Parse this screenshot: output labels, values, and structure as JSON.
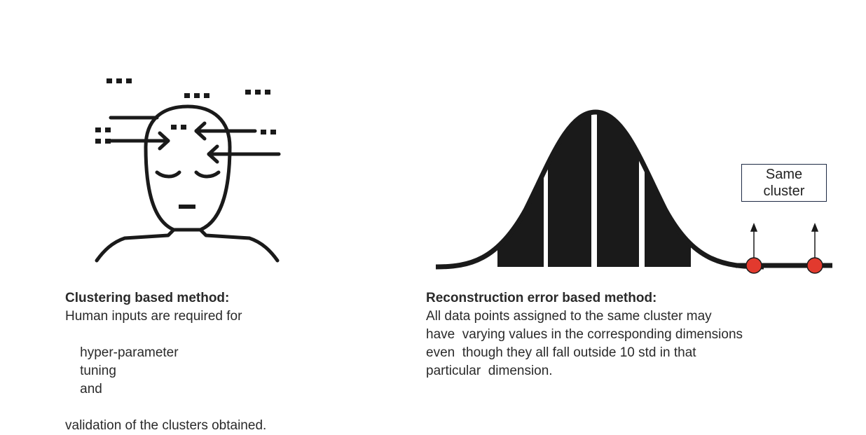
{
  "left": {
    "heading": "Clustering based method:",
    "body": {
      "line1": "Human inputs are required for",
      "line2_words": [
        "hyper-parameter",
        "tuning",
        "and"
      ],
      "line3": "validation of the clusters obtained."
    }
  },
  "right": {
    "heading": "Reconstruction error based method:",
    "body": {
      "line1": "All data points assigned to the same cluster may",
      "line2": "have  varying values in the corresponding dimensions",
      "line3": "even  though they all fall outside 10 std in that",
      "line4": "particular  dimension."
    },
    "callout": {
      "line1": "Same",
      "line2": "cluster"
    }
  },
  "colors": {
    "ink": "#1a1a1a",
    "point": "#e23a2e",
    "box_border": "#1d2a44"
  },
  "icons": [
    "thinking-head-icon",
    "bell-curve-icon"
  ]
}
